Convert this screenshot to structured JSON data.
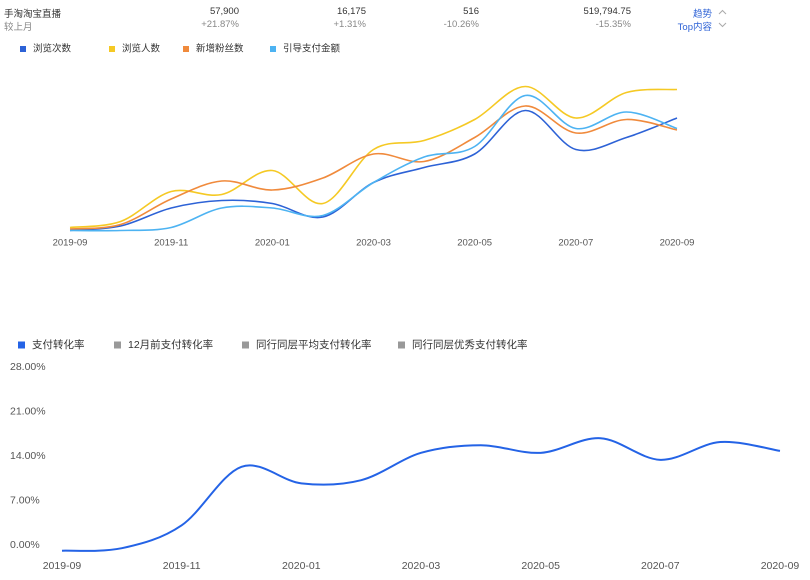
{
  "header": {
    "title": "手淘淘宝直播",
    "compare_label": "较上月",
    "metrics": [
      {
        "value": "57,900",
        "change": "+21.87%"
      },
      {
        "value": "16,175",
        "change": "+1.31%"
      },
      {
        "value": "516",
        "change": "-10.26%"
      },
      {
        "value": "519,794.75",
        "change": "-15.35%"
      }
    ],
    "links": [
      "趋势",
      "Top内容"
    ]
  },
  "chart_data": [
    {
      "type": "line",
      "categories": [
        "2019-09",
        null,
        "2019-11",
        null,
        "2020-01",
        null,
        "2020-03",
        null,
        "2020-05",
        null,
        "2020-07",
        null,
        "2020-09"
      ],
      "ylim": [
        0,
        100
      ],
      "series": [
        {
          "name": "浏览次数",
          "color": "#2d62d6",
          "values": [
            1,
            4,
            16,
            21,
            19,
            10,
            33,
            43,
            52,
            81,
            55,
            63,
            76
          ]
        },
        {
          "name": "浏览人数",
          "color": "#f5c924",
          "values": [
            3,
            7,
            27,
            25,
            41,
            19,
            55,
            61,
            75,
            97,
            76,
            93,
            95
          ]
        },
        {
          "name": "新增粉丝数",
          "color": "#f08a3c",
          "values": [
            2,
            5,
            22,
            34,
            28,
            36,
            52,
            47,
            63,
            84,
            66,
            75,
            68
          ]
        },
        {
          "name": "引导支付金额",
          "color": "#4db3f2",
          "values": [
            1,
            1,
            3,
            16,
            16,
            11,
            33,
            50,
            57,
            91,
            69,
            80,
            69
          ]
        }
      ]
    },
    {
      "type": "line",
      "categories": [
        "2019-09",
        null,
        "2019-11",
        null,
        "2020-01",
        null,
        "2020-03",
        null,
        "2020-05",
        null,
        "2020-07",
        null,
        "2020-09"
      ],
      "ylim": [
        0,
        28
      ],
      "yticks": [
        {
          "value": 0,
          "label": "0.00%"
        },
        {
          "value": 7,
          "label": "7.00%"
        },
        {
          "value": 14,
          "label": "14.00%"
        },
        {
          "value": 21,
          "label": "21.00%"
        },
        {
          "value": 28,
          "label": "28.00%"
        }
      ],
      "series": [
        {
          "name": "支付转化率",
          "color": "#2463e6",
          "values": [
            -0.9,
            -0.5,
            3.1,
            12.3,
            9.7,
            10.2,
            14.5,
            15.7,
            14.5,
            16.8,
            13.4,
            16.2,
            14.8
          ]
        },
        {
          "name": "12月前支付转化率",
          "color": "#999999",
          "values": [
            null,
            null,
            null,
            null,
            null,
            null,
            null,
            null,
            null,
            null,
            null,
            null,
            null
          ]
        },
        {
          "name": "同行同层平均支付转化率",
          "color": "#999999",
          "values": [
            null,
            null,
            null,
            null,
            null,
            null,
            null,
            null,
            null,
            null,
            null,
            null,
            null
          ]
        },
        {
          "name": "同行同层优秀支付转化率",
          "color": "#999999",
          "values": [
            null,
            null,
            null,
            null,
            null,
            null,
            null,
            null,
            null,
            null,
            null,
            null,
            null
          ]
        }
      ]
    }
  ]
}
